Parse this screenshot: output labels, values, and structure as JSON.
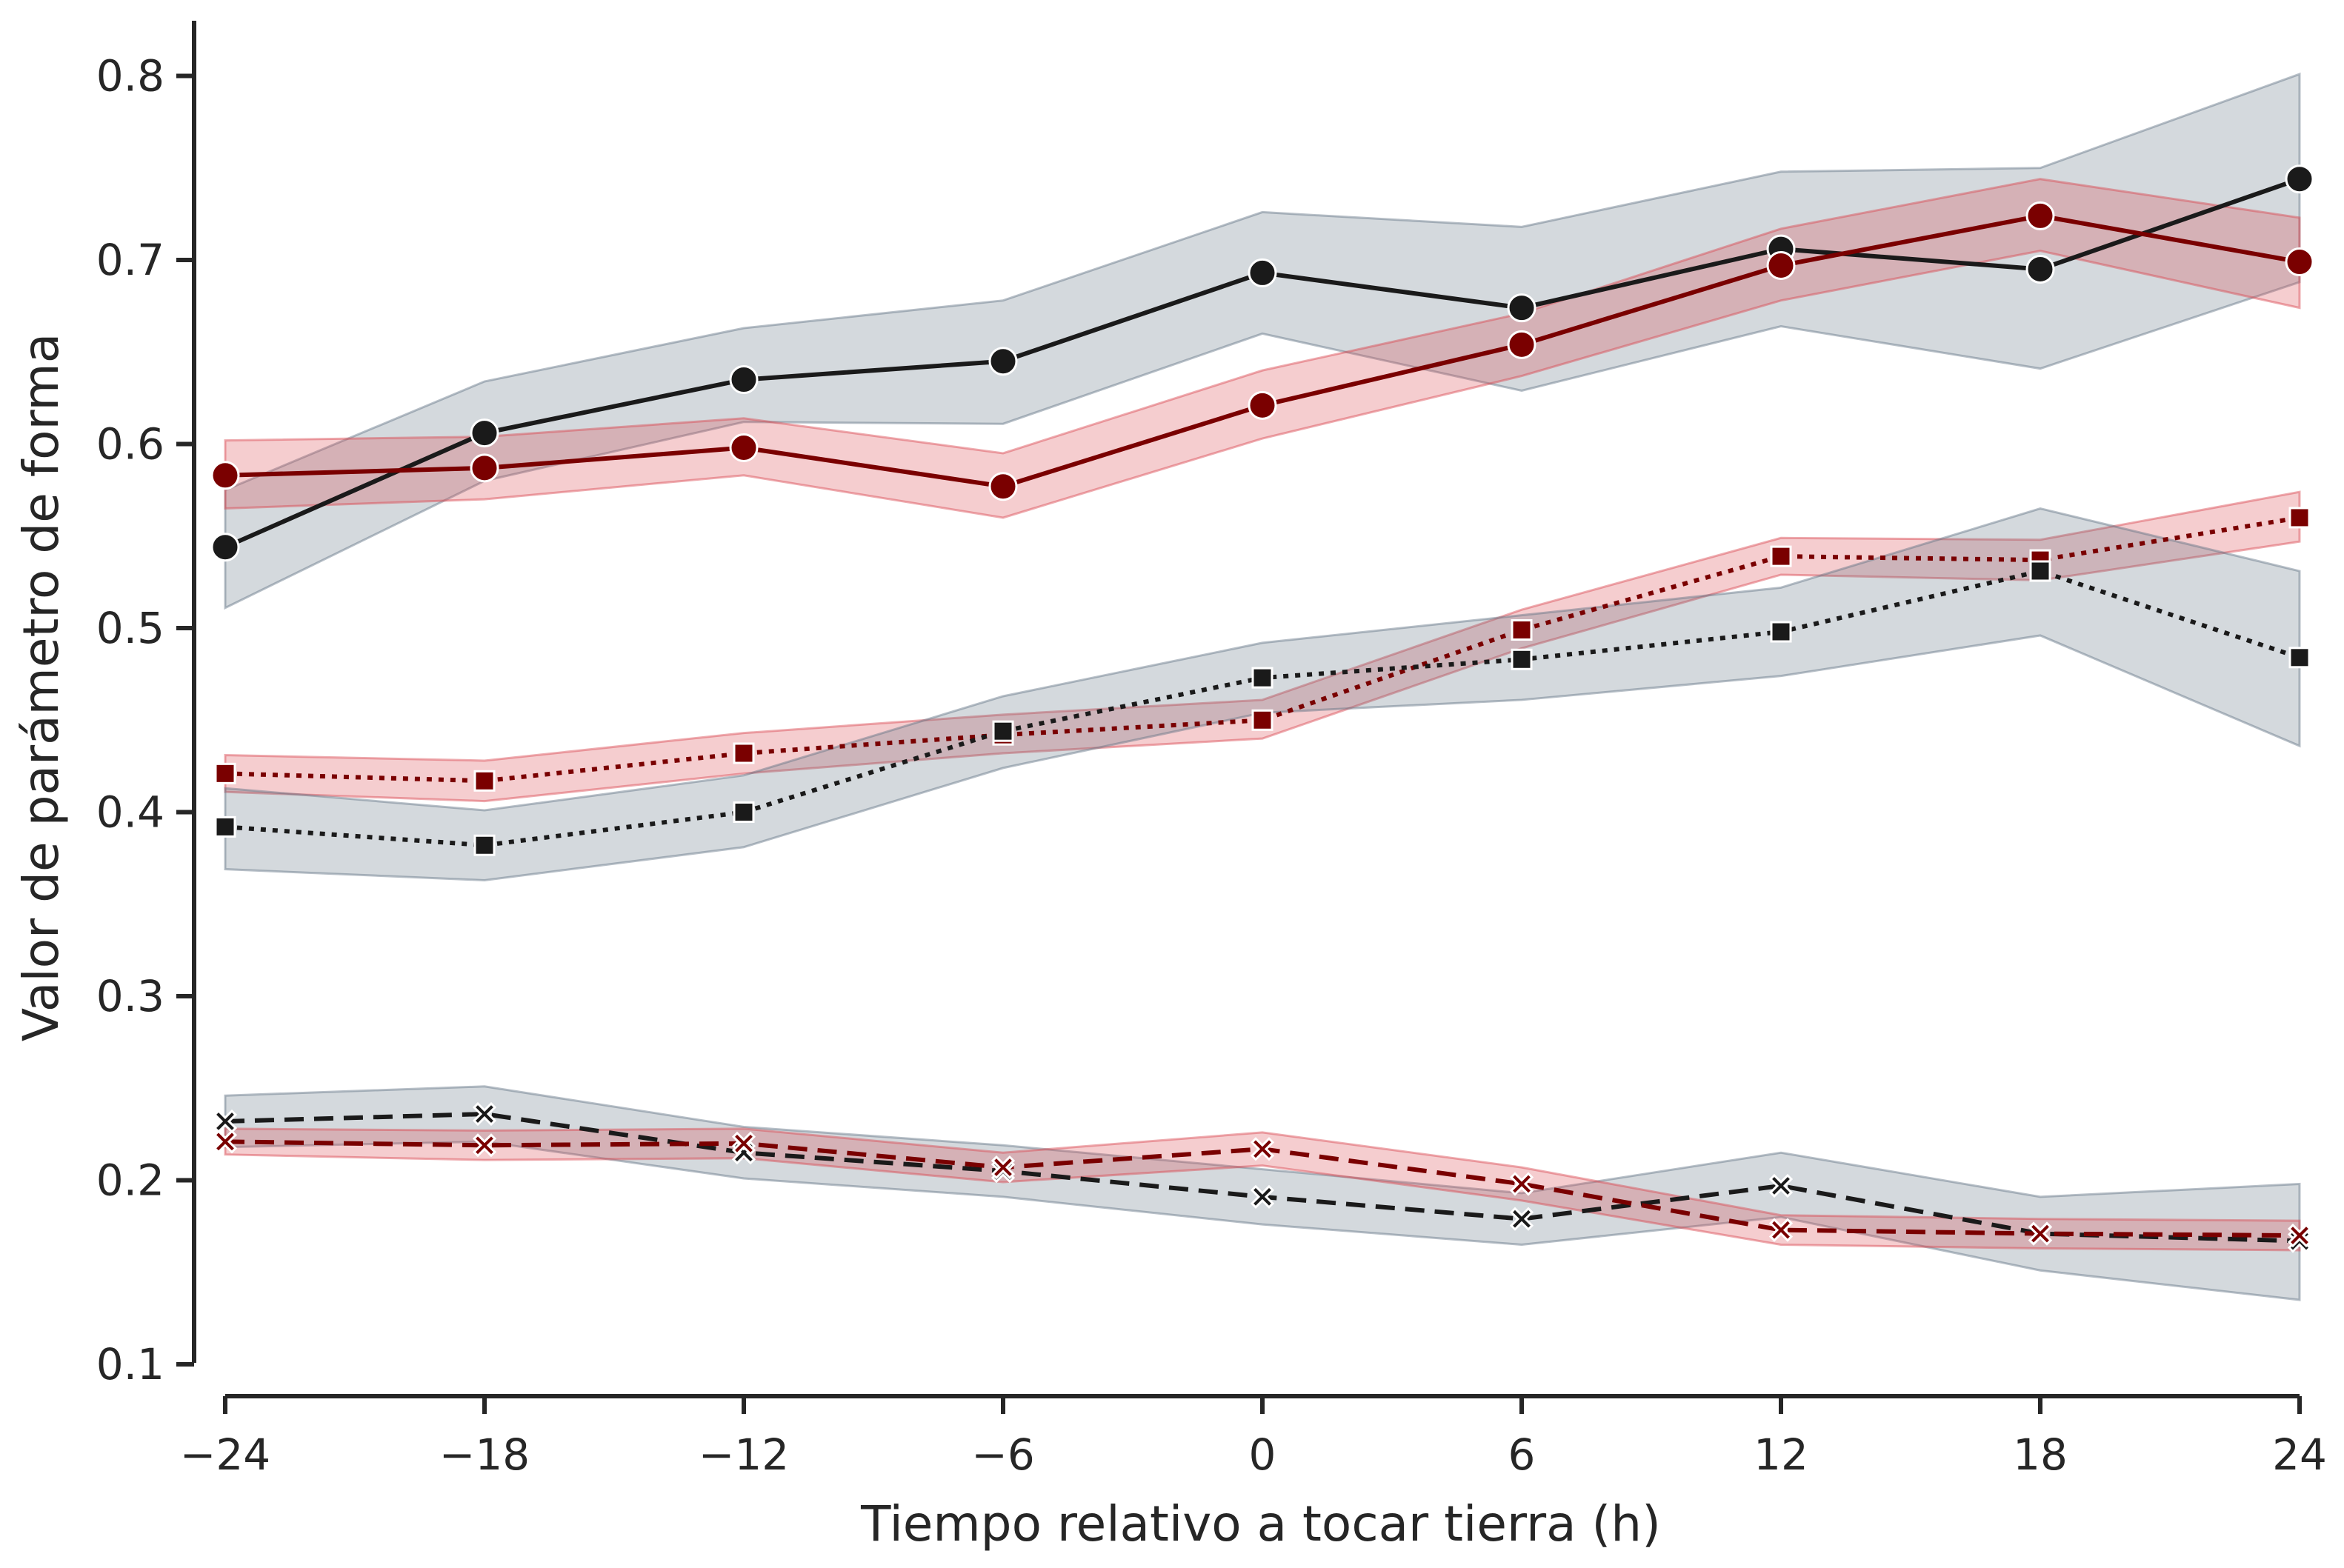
{
  "chart_data": {
    "type": "line",
    "title": "",
    "xlabel": "Tiempo relativo a tocar tierra (h)",
    "ylabel": "Valor de parámetro de forma",
    "xlim": [
      -24,
      24
    ],
    "ylim": [
      0.1,
      0.83
    ],
    "x_ticks": [
      -24,
      -18,
      -12,
      -6,
      0,
      6,
      12,
      18,
      24
    ],
    "x_tick_labels": [
      "−24",
      "−18",
      "−12",
      "−6",
      "0",
      "6",
      "12",
      "18",
      "24"
    ],
    "y_ticks": [
      0.1,
      0.2,
      0.3,
      0.4,
      0.5,
      0.6,
      0.7,
      0.8
    ],
    "y_tick_labels": [
      "0.1",
      "0.2",
      "0.3",
      "0.4",
      "0.5",
      "0.6",
      "0.7",
      "0.8"
    ],
    "grid": false,
    "legend": "none",
    "x": [
      -24,
      -18,
      -12,
      -6,
      0,
      6,
      12,
      18,
      24
    ],
    "series": [
      {
        "name": "black-solid-circle",
        "color": "#1a1a1a",
        "band_color": "#5f7283",
        "linestyle": "solid",
        "marker": "circle",
        "values": [
          0.544,
          0.606,
          0.635,
          0.645,
          0.693,
          0.674,
          0.706,
          0.695,
          0.744
        ],
        "lower": [
          0.511,
          0.58,
          0.612,
          0.611,
          0.66,
          0.629,
          0.664,
          0.641,
          0.688
        ],
        "upper": [
          0.575,
          0.634,
          0.663,
          0.678,
          0.726,
          0.718,
          0.748,
          0.75,
          0.801
        ]
      },
      {
        "name": "red-solid-circle",
        "color": "#7a0000",
        "band_color": "#d9454d",
        "linestyle": "solid",
        "marker": "circle",
        "values": [
          0.583,
          0.587,
          0.598,
          0.577,
          0.621,
          0.654,
          0.697,
          0.724,
          0.699
        ],
        "lower": [
          0.565,
          0.57,
          0.583,
          0.56,
          0.603,
          0.637,
          0.678,
          0.705,
          0.674
        ],
        "upper": [
          0.602,
          0.604,
          0.614,
          0.595,
          0.64,
          0.671,
          0.717,
          0.744,
          0.723
        ]
      },
      {
        "name": "red-dotted-square",
        "color": "#7a0000",
        "band_color": "#d9454d",
        "linestyle": "dotted",
        "marker": "square",
        "values": [
          0.421,
          0.417,
          0.432,
          0.442,
          0.45,
          0.499,
          0.539,
          0.537,
          0.56
        ],
        "lower": [
          0.411,
          0.406,
          0.421,
          0.432,
          0.44,
          0.489,
          0.529,
          0.526,
          0.547
        ],
        "upper": [
          0.431,
          0.428,
          0.443,
          0.453,
          0.461,
          0.51,
          0.549,
          0.548,
          0.574
        ]
      },
      {
        "name": "black-dotted-square",
        "color": "#1a1a1a",
        "band_color": "#5f7283",
        "linestyle": "dotted",
        "marker": "square",
        "values": [
          0.392,
          0.382,
          0.4,
          0.444,
          0.473,
          0.483,
          0.498,
          0.531,
          0.484
        ],
        "lower": [
          0.369,
          0.363,
          0.381,
          0.424,
          0.454,
          0.461,
          0.474,
          0.496,
          0.436
        ],
        "upper": [
          0.413,
          0.401,
          0.42,
          0.463,
          0.492,
          0.507,
          0.522,
          0.565,
          0.531
        ]
      },
      {
        "name": "black-dashed-x",
        "color": "#1a1a1a",
        "band_color": "#5f7283",
        "linestyle": "dashed",
        "marker": "x",
        "values": [
          0.232,
          0.236,
          0.215,
          0.205,
          0.191,
          0.179,
          0.197,
          0.171,
          0.167
        ],
        "lower": [
          0.218,
          0.221,
          0.201,
          0.191,
          0.176,
          0.165,
          0.18,
          0.151,
          0.135
        ],
        "upper": [
          0.246,
          0.251,
          0.229,
          0.219,
          0.206,
          0.193,
          0.215,
          0.191,
          0.198
        ]
      },
      {
        "name": "red-dashed-x",
        "color": "#7a0000",
        "band_color": "#d9454d",
        "linestyle": "dashed",
        "marker": "x",
        "values": [
          0.221,
          0.219,
          0.22,
          0.207,
          0.217,
          0.198,
          0.173,
          0.171,
          0.17
        ],
        "lower": [
          0.214,
          0.211,
          0.212,
          0.199,
          0.208,
          0.189,
          0.165,
          0.163,
          0.162
        ],
        "upper": [
          0.228,
          0.227,
          0.228,
          0.215,
          0.226,
          0.207,
          0.181,
          0.179,
          0.178
        ]
      }
    ]
  }
}
